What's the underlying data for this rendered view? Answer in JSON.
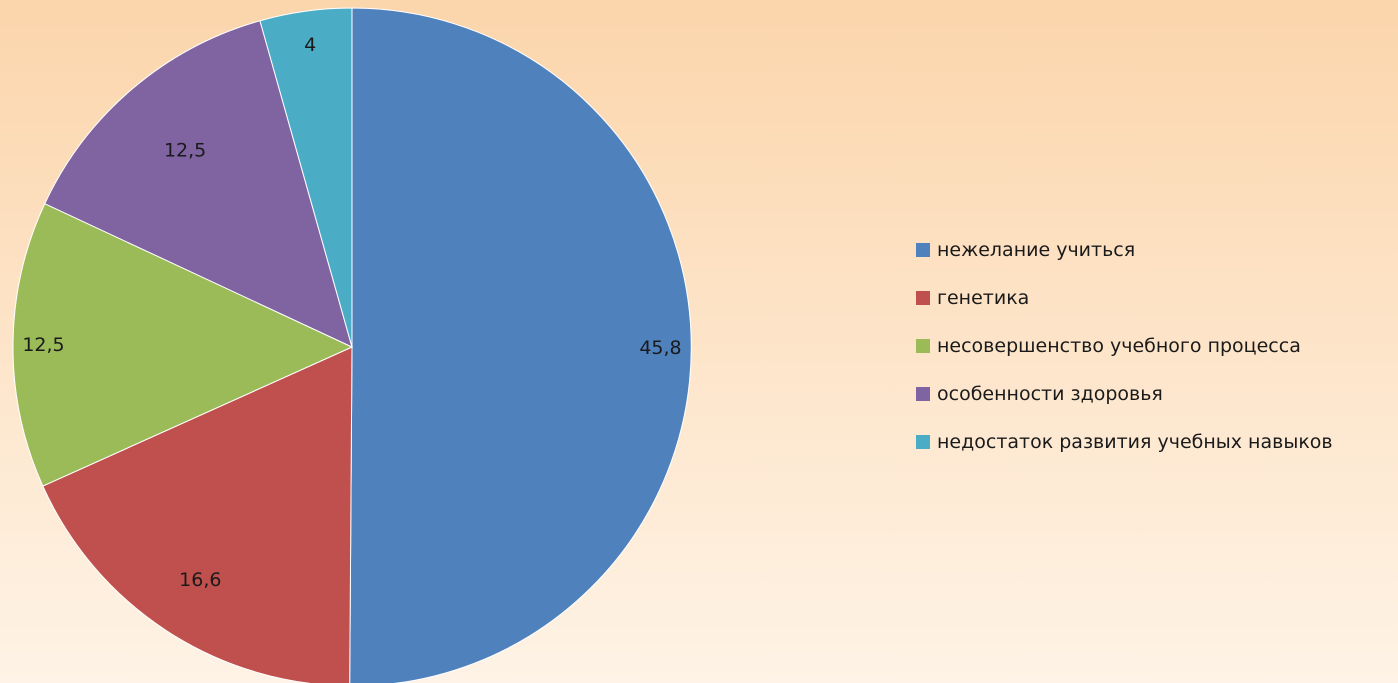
{
  "chart_data": {
    "type": "pie",
    "title": "",
    "categories": [
      "нежелание учиться",
      "генетика",
      "несовершенство учебного процесса",
      "особенности здоровья",
      "недостаток развития учебных навыков"
    ],
    "values": [
      45.8,
      16.6,
      12.5,
      12.5,
      4
    ],
    "data_labels": [
      "45,8",
      "16,6",
      "12,5",
      "12,5",
      "4"
    ],
    "colors": [
      "#4f81bd",
      "#c0504d",
      "#9bbb59",
      "#8064a2",
      "#4bacc6"
    ],
    "start_angle": "12 o'clock",
    "direction": "clockwise",
    "legend_position": "right"
  }
}
